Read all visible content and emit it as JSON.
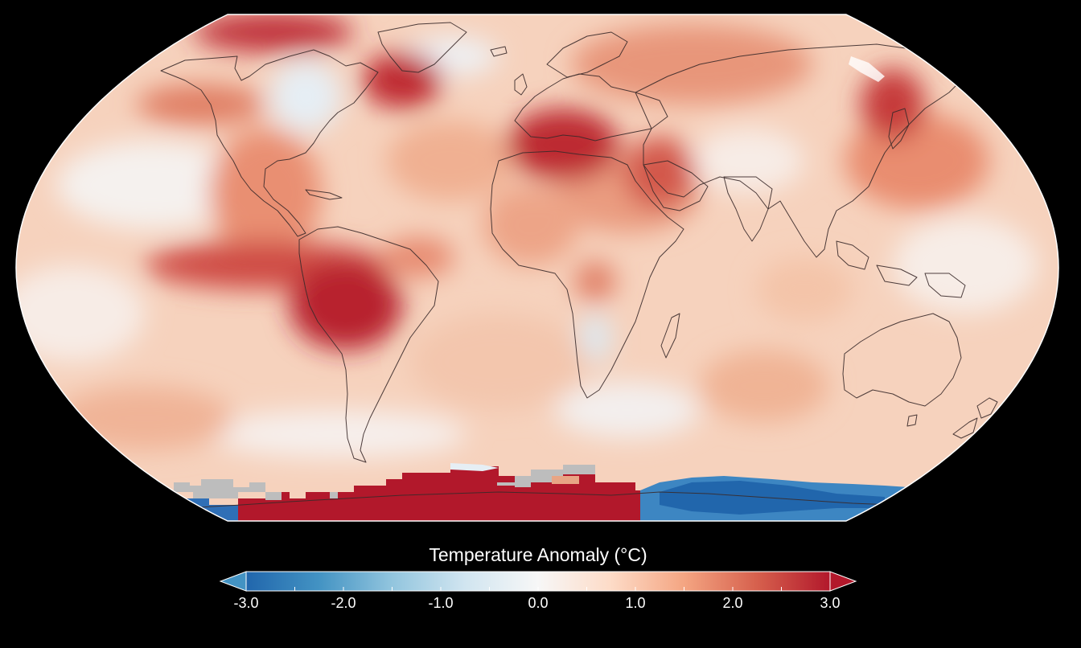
{
  "map": {
    "projection": "Robinson (world, Pacific-left)",
    "background_color": "#000000",
    "land_outline_color": "#3a2a2a",
    "no_data_color": "#bdbdbd"
  },
  "legend": {
    "title": "Temperature Anomaly (°C)",
    "ticks": [
      "-3.0",
      "-2.0",
      "-1.0",
      "0.0",
      "1.0",
      "2.0",
      "3.0"
    ],
    "range": [
      -3.0,
      3.0
    ],
    "extend": "both",
    "colors": {
      "min": "#2166ac",
      "low": "#4393c3",
      "mid_low": "#92c5de",
      "pale_low": "#d1e5f0",
      "zero": "#f7f7f7",
      "pale_high": "#fddbc7",
      "mid_high": "#f4a582",
      "high": "#d6604d",
      "max": "#b2182b"
    }
  }
}
